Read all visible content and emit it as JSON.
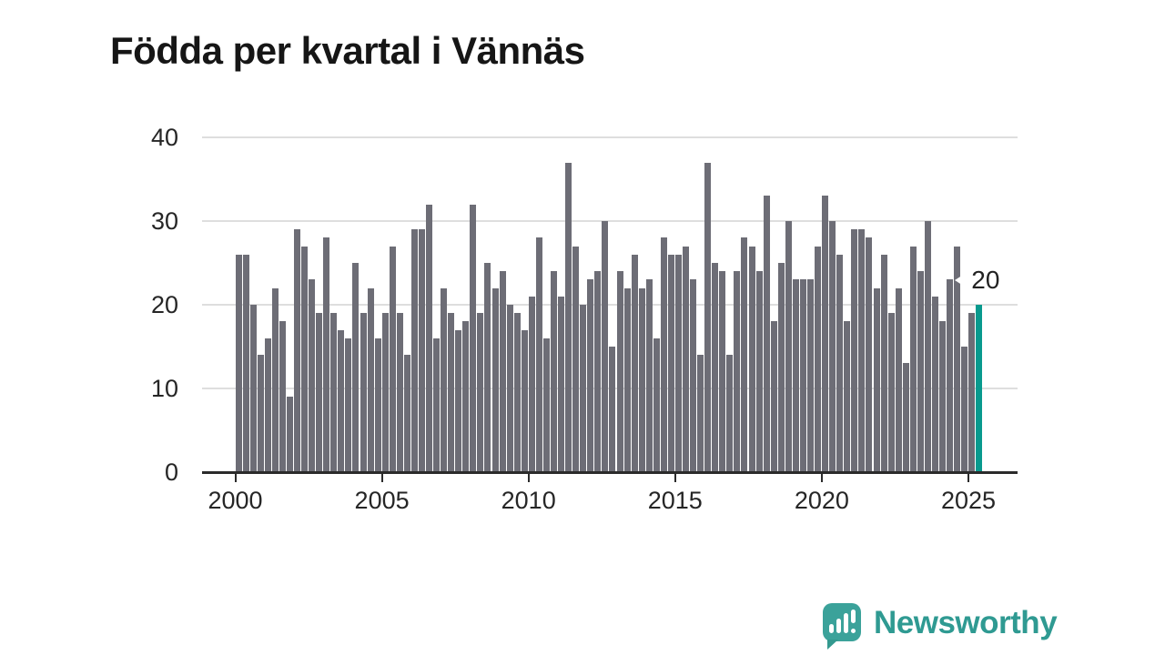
{
  "title": "Födda per kvartal i Vännäs",
  "chart_data": {
    "type": "bar",
    "title": "Födda per kvartal i Vännäs",
    "frequency": "quarterly",
    "x_start": "2000 Q1",
    "x_end": "2025 Q2",
    "ylim": [
      0,
      40
    ],
    "y_ticks": [
      0,
      10,
      20,
      30,
      40
    ],
    "x_ticks": [
      "2000",
      "2005",
      "2010",
      "2015",
      "2020",
      "2025"
    ],
    "grid": "horizontal",
    "legend": "none",
    "values": [
      26,
      26,
      20,
      14,
      16,
      22,
      18,
      9,
      29,
      27,
      23,
      19,
      28,
      19,
      17,
      16,
      25,
      19,
      22,
      16,
      19,
      27,
      19,
      14,
      29,
      29,
      32,
      16,
      22,
      19,
      17,
      18,
      32,
      19,
      25,
      22,
      24,
      20,
      19,
      17,
      21,
      28,
      16,
      24,
      21,
      37,
      27,
      20,
      23,
      24,
      30,
      15,
      24,
      22,
      26,
      22,
      23,
      16,
      28,
      26,
      26,
      27,
      23,
      14,
      37,
      25,
      24,
      14,
      24,
      28,
      27,
      24,
      33,
      18,
      25,
      30,
      23,
      23,
      23,
      27,
      33,
      30,
      26,
      18,
      29,
      29,
      28,
      22,
      26,
      19,
      22,
      13,
      27,
      24,
      30,
      21,
      18,
      23,
      27,
      15,
      19,
      20
    ],
    "highlight": {
      "position": "last",
      "value": 20,
      "label": "20"
    }
  },
  "annotation": {
    "label": "20"
  },
  "colors": {
    "bar": "#6d6d76",
    "highlight": "#089a8e",
    "grid": "#dedede",
    "axis": "#2b2b2b",
    "title": "#161616",
    "logo": "#2f9a92"
  },
  "branding": {
    "wordmark": "Newsworthy",
    "icon": "newsworthy-speech-bubble-chart-icon"
  }
}
